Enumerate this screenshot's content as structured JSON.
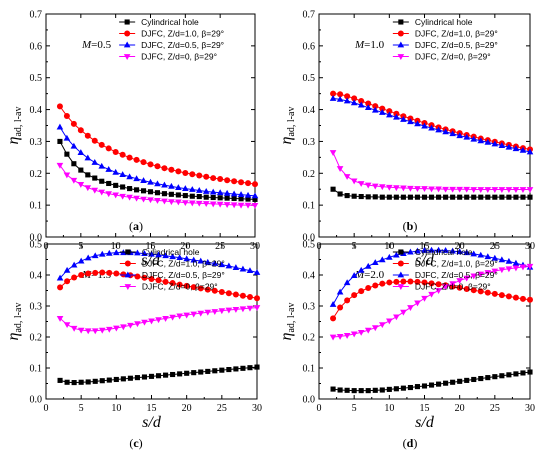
{
  "figure": {
    "background": "#ffffff"
  },
  "chart_data": [
    {
      "type": "line",
      "panel_label": "a",
      "annotation": "M=0.5",
      "annotation_var": "M",
      "annotation_val": "=0.5",
      "xlabel": "s/d",
      "ylabel_main": "η",
      "ylabel_sub": "ad, l-av",
      "xlim": [
        0,
        30
      ],
      "ylim": [
        0,
        0.7
      ],
      "xticks": [
        0,
        5,
        10,
        15,
        20,
        25,
        30
      ],
      "yticks": [
        0.0,
        0.1,
        0.2,
        0.3,
        0.4,
        0.5,
        0.6,
        0.7
      ],
      "x": [
        2,
        3,
        4,
        5,
        6,
        7,
        8,
        9,
        10,
        11,
        12,
        13,
        14,
        15,
        16,
        17,
        18,
        19,
        20,
        21,
        22,
        23,
        24,
        25,
        26,
        27,
        28,
        29,
        30
      ],
      "series": [
        {
          "name": "Cylindrical hole",
          "marker": "square",
          "color": "#000000",
          "values": [
            0.3,
            0.26,
            0.23,
            0.21,
            0.195,
            0.185,
            0.175,
            0.168,
            0.162,
            0.157,
            0.152,
            0.148,
            0.145,
            0.142,
            0.139,
            0.136,
            0.134,
            0.132,
            0.13,
            0.128,
            0.127,
            0.125,
            0.124,
            0.123,
            0.122,
            0.121,
            0.12,
            0.119,
            0.118
          ]
        },
        {
          "name": "DJFC, Z/d=1.0, β=29°",
          "marker": "circle",
          "color": "#ff0000",
          "values": [
            0.41,
            0.38,
            0.355,
            0.335,
            0.318,
            0.302,
            0.289,
            0.278,
            0.267,
            0.258,
            0.249,
            0.242,
            0.235,
            0.228,
            0.222,
            0.216,
            0.211,
            0.206,
            0.201,
            0.197,
            0.193,
            0.189,
            0.185,
            0.182,
            0.178,
            0.175,
            0.172,
            0.169,
            0.166
          ]
        },
        {
          "name": "DJFC, Z/d=0.5, β=29°",
          "marker": "triangle-up",
          "color": "#0000ff",
          "values": [
            0.345,
            0.31,
            0.285,
            0.265,
            0.248,
            0.234,
            0.222,
            0.212,
            0.203,
            0.196,
            0.189,
            0.183,
            0.177,
            0.172,
            0.167,
            0.163,
            0.159,
            0.155,
            0.152,
            0.149,
            0.146,
            0.143,
            0.141,
            0.139,
            0.137,
            0.135,
            0.133,
            0.131,
            0.129
          ]
        },
        {
          "name": "DJFC, Z/d=0, β=29°",
          "marker": "triangle-down",
          "color": "#ff00ff",
          "values": [
            0.225,
            0.195,
            0.178,
            0.165,
            0.155,
            0.147,
            0.141,
            0.136,
            0.132,
            0.128,
            0.125,
            0.122,
            0.119,
            0.117,
            0.115,
            0.113,
            0.111,
            0.11,
            0.108,
            0.107,
            0.106,
            0.105,
            0.104,
            0.103,
            0.102,
            0.101,
            0.1,
            0.1,
            0.099
          ]
        }
      ]
    },
    {
      "type": "line",
      "panel_label": "b",
      "annotation": "M=1.0",
      "annotation_var": "M",
      "annotation_val": "=1.0",
      "xlabel": "s/d",
      "ylabel_main": "η",
      "ylabel_sub": "ad, l-av",
      "xlim": [
        0,
        30
      ],
      "ylim": [
        0,
        0.7
      ],
      "xticks": [
        0,
        5,
        10,
        15,
        20,
        25,
        30
      ],
      "yticks": [
        0.0,
        0.1,
        0.2,
        0.3,
        0.4,
        0.5,
        0.6,
        0.7
      ],
      "x": [
        2,
        3,
        4,
        5,
        6,
        7,
        8,
        9,
        10,
        11,
        12,
        13,
        14,
        15,
        16,
        17,
        18,
        19,
        20,
        21,
        22,
        23,
        24,
        25,
        26,
        27,
        28,
        29,
        30
      ],
      "series": [
        {
          "name": "Cylindrical hole",
          "marker": "square",
          "color": "#000000",
          "values": [
            0.15,
            0.135,
            0.13,
            0.128,
            0.127,
            0.126,
            0.126,
            0.125,
            0.125,
            0.125,
            0.125,
            0.125,
            0.125,
            0.125,
            0.125,
            0.125,
            0.125,
            0.125,
            0.125,
            0.125,
            0.125,
            0.125,
            0.125,
            0.125,
            0.125,
            0.125,
            0.125,
            0.125,
            0.125
          ]
        },
        {
          "name": "DJFC, Z/d=1.0, β=29°",
          "marker": "circle",
          "color": "#ff0000",
          "values": [
            0.45,
            0.448,
            0.442,
            0.435,
            0.427,
            0.419,
            0.411,
            0.403,
            0.395,
            0.387,
            0.379,
            0.372,
            0.365,
            0.358,
            0.351,
            0.344,
            0.338,
            0.332,
            0.326,
            0.32,
            0.315,
            0.309,
            0.304,
            0.299,
            0.294,
            0.289,
            0.284,
            0.279,
            0.275
          ]
        },
        {
          "name": "DJFC, Z/d=0.5, β=29°",
          "marker": "triangle-up",
          "color": "#0000ff",
          "values": [
            0.435,
            0.432,
            0.427,
            0.421,
            0.414,
            0.406,
            0.398,
            0.391,
            0.383,
            0.376,
            0.369,
            0.362,
            0.355,
            0.348,
            0.342,
            0.336,
            0.33,
            0.324,
            0.318,
            0.313,
            0.307,
            0.302,
            0.297,
            0.292,
            0.287,
            0.282,
            0.277,
            0.272,
            0.267
          ]
        },
        {
          "name": "DJFC, Z/d=0, β=29°",
          "marker": "triangle-down",
          "color": "#ff00ff",
          "values": [
            0.265,
            0.215,
            0.19,
            0.176,
            0.168,
            0.163,
            0.16,
            0.158,
            0.156,
            0.155,
            0.154,
            0.153,
            0.152,
            0.152,
            0.151,
            0.151,
            0.15,
            0.15,
            0.15,
            0.15,
            0.149,
            0.149,
            0.149,
            0.149,
            0.149,
            0.149,
            0.149,
            0.149,
            0.149
          ]
        }
      ]
    },
    {
      "type": "line",
      "panel_label": "c",
      "annotation": "M=1.5",
      "annotation_var": "M",
      "annotation_val": "=1.5",
      "xlabel": "s/d",
      "ylabel_main": "η",
      "ylabel_sub": "ad, l-av",
      "xlim": [
        0,
        30
      ],
      "ylim": [
        0,
        0.5
      ],
      "xticks": [
        0,
        5,
        10,
        15,
        20,
        25,
        30
      ],
      "yticks": [
        0.0,
        0.1,
        0.2,
        0.3,
        0.4,
        0.5
      ],
      "x": [
        2,
        3,
        4,
        5,
        6,
        7,
        8,
        9,
        10,
        11,
        12,
        13,
        14,
        15,
        16,
        17,
        18,
        19,
        20,
        21,
        22,
        23,
        24,
        25,
        26,
        27,
        28,
        29,
        30
      ],
      "series": [
        {
          "name": "Cylindrical hole",
          "marker": "square",
          "color": "#000000",
          "values": [
            0.06,
            0.054,
            0.053,
            0.054,
            0.055,
            0.057,
            0.059,
            0.061,
            0.063,
            0.065,
            0.067,
            0.069,
            0.071,
            0.073,
            0.075,
            0.077,
            0.079,
            0.081,
            0.083,
            0.085,
            0.087,
            0.089,
            0.091,
            0.093,
            0.095,
            0.097,
            0.099,
            0.101,
            0.103
          ]
        },
        {
          "name": "DJFC, Z/d=1.0, β=29°",
          "marker": "circle",
          "color": "#ff0000",
          "values": [
            0.36,
            0.38,
            0.392,
            0.4,
            0.405,
            0.407,
            0.408,
            0.407,
            0.405,
            0.402,
            0.399,
            0.395,
            0.391,
            0.387,
            0.383,
            0.378,
            0.374,
            0.369,
            0.365,
            0.361,
            0.357,
            0.353,
            0.349,
            0.345,
            0.341,
            0.337,
            0.333,
            0.329,
            0.325
          ]
        },
        {
          "name": "DJFC, Z/d=0.5, β=29°",
          "marker": "triangle-up",
          "color": "#0000ff",
          "values": [
            0.39,
            0.415,
            0.432,
            0.445,
            0.455,
            0.462,
            0.467,
            0.47,
            0.472,
            0.472,
            0.472,
            0.471,
            0.469,
            0.467,
            0.465,
            0.462,
            0.459,
            0.456,
            0.452,
            0.448,
            0.445,
            0.441,
            0.437,
            0.433,
            0.429,
            0.424,
            0.419,
            0.414,
            0.408
          ]
        },
        {
          "name": "DJFC, Z/d=0, β=29°",
          "marker": "triangle-down",
          "color": "#ff00ff",
          "values": [
            0.26,
            0.24,
            0.228,
            0.222,
            0.22,
            0.22,
            0.222,
            0.225,
            0.229,
            0.233,
            0.238,
            0.243,
            0.248,
            0.252,
            0.256,
            0.26,
            0.264,
            0.268,
            0.271,
            0.274,
            0.277,
            0.28,
            0.282,
            0.285,
            0.287,
            0.289,
            0.291,
            0.293,
            0.295
          ]
        }
      ]
    },
    {
      "type": "line",
      "panel_label": "d",
      "annotation": "M=2.0",
      "annotation_var": "M",
      "annotation_val": "=2.0",
      "xlabel": "s/d",
      "ylabel_main": "η",
      "ylabel_sub": "ad, l-av",
      "xlim": [
        0,
        30
      ],
      "ylim": [
        0,
        0.5
      ],
      "xticks": [
        0,
        5,
        10,
        15,
        20,
        25,
        30
      ],
      "yticks": [
        0.0,
        0.1,
        0.2,
        0.3,
        0.4,
        0.5
      ],
      "x": [
        2,
        3,
        4,
        5,
        6,
        7,
        8,
        9,
        10,
        11,
        12,
        13,
        14,
        15,
        16,
        17,
        18,
        19,
        20,
        21,
        22,
        23,
        24,
        25,
        26,
        27,
        28,
        29,
        30
      ],
      "series": [
        {
          "name": "Cylindrical hole",
          "marker": "square",
          "color": "#000000",
          "values": [
            0.032,
            0.029,
            0.028,
            0.027,
            0.027,
            0.027,
            0.028,
            0.029,
            0.031,
            0.033,
            0.035,
            0.037,
            0.04,
            0.042,
            0.045,
            0.048,
            0.051,
            0.054,
            0.057,
            0.06,
            0.063,
            0.066,
            0.069,
            0.072,
            0.075,
            0.078,
            0.081,
            0.084,
            0.087
          ]
        },
        {
          "name": "DJFC, Z/d=1.0, β=29°",
          "marker": "circle",
          "color": "#ff0000",
          "values": [
            0.26,
            0.295,
            0.318,
            0.335,
            0.348,
            0.358,
            0.366,
            0.372,
            0.376,
            0.378,
            0.379,
            0.379,
            0.378,
            0.376,
            0.373,
            0.37,
            0.367,
            0.363,
            0.359,
            0.355,
            0.351,
            0.347,
            0.343,
            0.339,
            0.335,
            0.331,
            0.327,
            0.323,
            0.32
          ]
        },
        {
          "name": "DJFC, Z/d=0.5, β=29°",
          "marker": "triangle-up",
          "color": "#0000ff",
          "values": [
            0.305,
            0.345,
            0.375,
            0.398,
            0.415,
            0.428,
            0.44,
            0.449,
            0.457,
            0.464,
            0.469,
            0.474,
            0.477,
            0.479,
            0.48,
            0.48,
            0.479,
            0.477,
            0.475,
            0.472,
            0.468,
            0.464,
            0.459,
            0.454,
            0.449,
            0.444,
            0.438,
            0.432,
            0.425
          ]
        },
        {
          "name": "DJFC, Z/d=0, β=29°",
          "marker": "triangle-down",
          "color": "#ff00ff",
          "values": [
            0.2,
            0.202,
            0.205,
            0.21,
            0.215,
            0.222,
            0.23,
            0.24,
            0.252,
            0.265,
            0.28,
            0.295,
            0.31,
            0.325,
            0.338,
            0.35,
            0.362,
            0.372,
            0.382,
            0.39,
            0.397,
            0.403,
            0.408,
            0.413,
            0.417,
            0.42,
            0.423,
            0.426,
            0.428
          ]
        }
      ]
    }
  ]
}
